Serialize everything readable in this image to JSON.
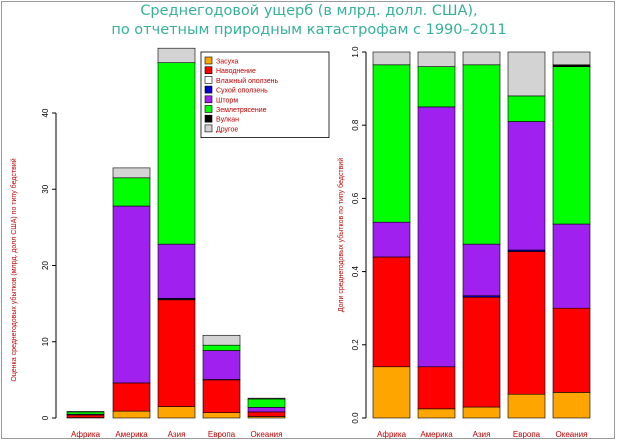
{
  "title": {
    "line1": "Среднегодовой ущерб (в млрд. долл. США),",
    "line2": "по отчетным природным катастрофам с 1990–2011"
  },
  "chart_data": [
    {
      "type": "bar",
      "stacked": true,
      "ylabel": "Оценка среднегодовых убытков (млрд. долл США) по типу бедствий",
      "ylim": [
        0,
        48
      ],
      "yticks": [
        0,
        10,
        20,
        30,
        40
      ],
      "categories": [
        "Африка",
        "Америка",
        "Азия",
        "Европа",
        "Океания"
      ],
      "series": [
        {
          "name": "Засуха",
          "color": "#ffa500",
          "values": [
            0.05,
            0.9,
            1.5,
            0.7,
            0.2
          ]
        },
        {
          "name": "Наводнение",
          "color": "#ff0000",
          "values": [
            0.35,
            3.7,
            14.0,
            4.3,
            0.6
          ]
        },
        {
          "name": "Влажный оползень",
          "color": "#ffffff",
          "values": [
            0,
            0,
            0.1,
            0,
            0
          ]
        },
        {
          "name": "Сухой оползень",
          "color": "#0000cd",
          "values": [
            0,
            0,
            0.1,
            0.05,
            0
          ]
        },
        {
          "name": "Шторм",
          "color": "#a020f0",
          "values": [
            0.1,
            23.2,
            7.1,
            3.8,
            0.6
          ]
        },
        {
          "name": "Землетрясение",
          "color": "#00ff00",
          "values": [
            0.3,
            3.7,
            23.8,
            0.7,
            1.1
          ]
        },
        {
          "name": "Вулкан",
          "color": "#000000",
          "values": [
            0,
            0,
            0,
            0,
            0
          ]
        },
        {
          "name": "Другое",
          "color": "#d3d3d3",
          "values": [
            0.05,
            1.3,
            1.9,
            1.3,
            0.1
          ]
        }
      ],
      "legend": "top-right"
    },
    {
      "type": "bar",
      "stacked": true,
      "ylabel": "Доли среднегодовых убытков по типу бедствий",
      "ylim": [
        0,
        1
      ],
      "yticks": [
        "0.0",
        "0.2",
        "0.4",
        "0.6",
        "0.8",
        "1.0"
      ],
      "categories": [
        "Африка",
        "Америка",
        "Азия",
        "Европа",
        "Океания"
      ],
      "series": [
        {
          "name": "Засуха",
          "color": "#ffa500",
          "values": [
            0.14,
            0.025,
            0.03,
            0.065,
            0.07
          ]
        },
        {
          "name": "Наводнение",
          "color": "#ff0000",
          "values": [
            0.3,
            0.115,
            0.3,
            0.39,
            0.23
          ]
        },
        {
          "name": "Влажный оползень",
          "color": "#ffffff",
          "values": [
            0,
            0,
            0,
            0,
            0
          ]
        },
        {
          "name": "Сухой оползень",
          "color": "#0000cd",
          "values": [
            0,
            0,
            0.004,
            0.004,
            0
          ]
        },
        {
          "name": "Шторм",
          "color": "#a020f0",
          "values": [
            0.095,
            0.71,
            0.141,
            0.351,
            0.23
          ]
        },
        {
          "name": "Землетрясение",
          "color": "#00ff00",
          "values": [
            0.43,
            0.11,
            0.49,
            0.07,
            0.43
          ]
        },
        {
          "name": "Вулкан",
          "color": "#000000",
          "values": [
            0,
            0,
            0,
            0,
            0.005
          ]
        },
        {
          "name": "Другое",
          "color": "#d3d3d3",
          "values": [
            0.035,
            0.04,
            0.035,
            0.12,
            0.035
          ]
        }
      ]
    }
  ]
}
